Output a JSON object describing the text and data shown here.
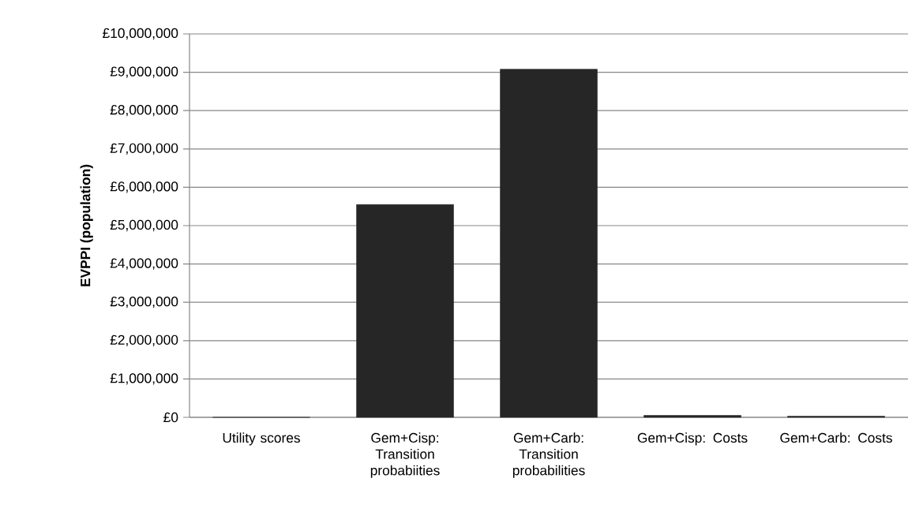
{
  "chart_data": {
    "type": "bar",
    "ylabel": "EVPPI (population)",
    "categories": [
      "Utility scores",
      "Gem+Cisp: Transition probabiities",
      "Gem+Carb: Transition probabilities",
      "Gem+Cisp: Costs",
      "Gem+Carb: Costs"
    ],
    "values": [
      0,
      5550000,
      9080000,
      50000,
      30000
    ],
    "color": "#262626",
    "ylim": [
      0,
      10000000
    ],
    "yticks": [
      {
        "value": 0,
        "label": "£0"
      },
      {
        "value": 1000000,
        "label": "£1,000,000"
      },
      {
        "value": 2000000,
        "label": "£2,000,000"
      },
      {
        "value": 3000000,
        "label": "£3,000,000"
      },
      {
        "value": 4000000,
        "label": "£4,000,000"
      },
      {
        "value": 5000000,
        "label": "£5,000,000"
      },
      {
        "value": 6000000,
        "label": "£6,000,000"
      },
      {
        "value": 7000000,
        "label": "£7,000,000"
      },
      {
        "value": 8000000,
        "label": "£8,000,000"
      },
      {
        "value": 9000000,
        "label": "£9,000,000"
      },
      {
        "value": 10000000,
        "label": "£10,000,000"
      }
    ],
    "grid": "y"
  }
}
